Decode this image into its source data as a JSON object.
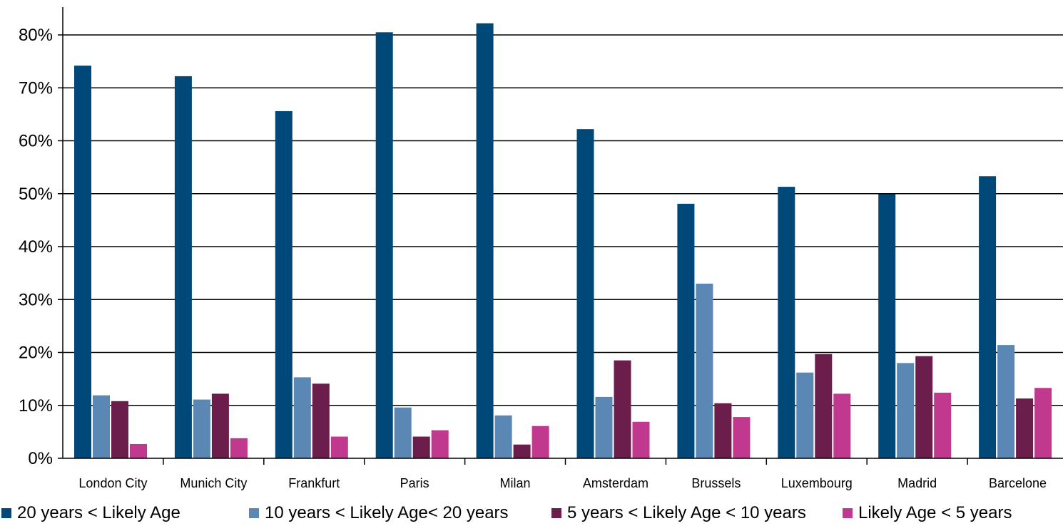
{
  "chart_data": {
    "type": "bar",
    "title": "",
    "xlabel": "",
    "ylabel": "",
    "ylim": [
      0,
      0.8
    ],
    "y_ticks": [
      "0%",
      "10%",
      "20%",
      "30%",
      "40%",
      "50%",
      "60%",
      "70%",
      "80%"
    ],
    "grid": "horizontal",
    "legend_position": "bottom",
    "categories": [
      "London City",
      "Munich City",
      "Frankfurt",
      "Paris",
      "Milan",
      "Amsterdam",
      "Brussels",
      "Luxembourg",
      "Madrid",
      "Barcelone"
    ],
    "series": [
      {
        "name": "20 years < Likely Age",
        "color": "#004878",
        "values": [
          0.742,
          0.722,
          0.656,
          0.805,
          0.822,
          0.622,
          0.481,
          0.513,
          0.499,
          0.533
        ]
      },
      {
        "name": "10 years < Likely Age< 20 years",
        "color": "#5b87b4",
        "values": [
          0.119,
          0.111,
          0.153,
          0.096,
          0.081,
          0.116,
          0.33,
          0.162,
          0.18,
          0.214
        ]
      },
      {
        "name": "5 years < Likely Age < 10 years",
        "color": "#6b1d4b",
        "values": [
          0.108,
          0.122,
          0.141,
          0.041,
          0.026,
          0.185,
          0.104,
          0.197,
          0.193,
          0.113
        ]
      },
      {
        "name": "Likely Age < 5 years",
        "color": "#c0398f",
        "values": [
          0.027,
          0.038,
          0.041,
          0.053,
          0.061,
          0.069,
          0.078,
          0.122,
          0.124,
          0.133
        ]
      }
    ]
  }
}
